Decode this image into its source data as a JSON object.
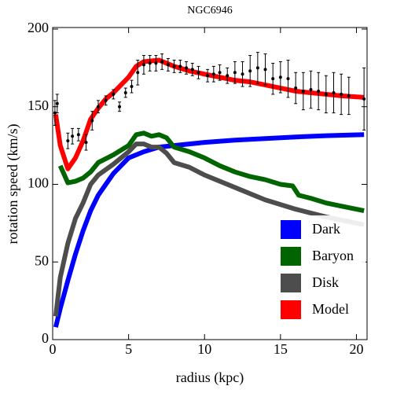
{
  "chart_data": {
    "type": "line",
    "title": "NGC6946",
    "x_label": "radius (kpc)",
    "y_label": "rotation speed (km/s)",
    "xlim": [
      0,
      20.7
    ],
    "ylim": [
      0,
      201
    ],
    "xticks": [
      0,
      5,
      10,
      15,
      20
    ],
    "yticks": [
      0,
      50,
      100,
      150,
      200
    ],
    "legend": "lower right",
    "series": [
      {
        "name": "Dark",
        "color": "#0000ff",
        "x": [
          0.2,
          0.5,
          1,
          1.5,
          2,
          2.5,
          3,
          4,
          5,
          6,
          7,
          8,
          10,
          12,
          14,
          16,
          18,
          20.5
        ],
        "values": [
          8,
          20,
          38,
          55,
          70,
          83,
          93,
          107,
          117,
          121,
          124,
          125,
          127,
          128.5,
          129.5,
          130.5,
          131.3,
          132
        ]
      },
      {
        "name": "Baryon",
        "color": "#006400",
        "x": [
          0.5,
          1,
          1.5,
          2,
          2.5,
          3,
          4,
          5,
          5.5,
          6,
          6.5,
          7,
          7.5,
          8,
          9,
          10,
          11,
          12,
          13,
          14,
          15,
          15.8,
          16.2,
          17,
          18,
          19,
          20.5
        ],
        "values": [
          112,
          101,
          102,
          104,
          108,
          114,
          119,
          125,
          132,
          133,
          131,
          132,
          130,
          124,
          121,
          117,
          112,
          108,
          105,
          103,
          100,
          99,
          93,
          91,
          88,
          86,
          83
        ]
      },
      {
        "name": "Disk",
        "color": "#4d4d4d",
        "x": [
          0.2,
          0.5,
          1,
          1.5,
          2,
          2.5,
          3,
          4,
          5,
          5.5,
          6,
          6.5,
          7,
          7.5,
          8,
          9,
          10,
          12,
          14,
          16,
          18,
          20.5
        ],
        "values": [
          15,
          40,
          62,
          78,
          88,
          100,
          106,
          113,
          121,
          126,
          126,
          124,
          124,
          120,
          114,
          111,
          106,
          98,
          90,
          84,
          79,
          74
        ]
      },
      {
        "name": "Model",
        "color": "#ff0000",
        "x": [
          0.2,
          0.5,
          1,
          1.5,
          2,
          2.5,
          3,
          3.5,
          4,
          5,
          5.5,
          6,
          7,
          7.5,
          8,
          9,
          10,
          11,
          12,
          13,
          14,
          15,
          16,
          17,
          18,
          19,
          20.5
        ],
        "values": [
          145,
          125,
          110,
          117,
          128,
          142,
          149,
          155,
          159,
          169,
          176,
          179,
          180,
          178,
          176,
          173,
          171,
          169,
          167,
          166,
          164,
          162,
          160,
          159,
          158,
          157,
          156
        ]
      }
    ],
    "points": {
      "color": "#000000",
      "x": [
        0.15,
        0.3,
        1,
        1.3,
        1.7,
        2.2,
        2.6,
        3,
        3.5,
        4,
        4.4,
        4.8,
        5.2,
        5.6,
        6,
        6.4,
        6.8,
        7.2,
        7.6,
        8,
        8.4,
        8.8,
        9.2,
        9.6,
        10.2,
        10.6,
        11,
        11.5,
        12,
        12.5,
        13,
        13.5,
        14,
        14.5,
        15,
        15.5,
        16,
        16.5,
        17,
        17.5,
        18,
        18.5,
        19,
        19.5,
        20.5
      ],
      "values": [
        146,
        152,
        128,
        131,
        132,
        127,
        141,
        150,
        154,
        158,
        150,
        159,
        163,
        172,
        177,
        178,
        178,
        179,
        177,
        176,
        176,
        175,
        174,
        172,
        170,
        171,
        172,
        170,
        172,
        171,
        173,
        175,
        174,
        168,
        169,
        168,
        162,
        160,
        161,
        160,
        158,
        159,
        158,
        157,
        155
      ],
      "errors": [
        8,
        6,
        5,
        5,
        4,
        5,
        6,
        4,
        3,
        3,
        3,
        3,
        4,
        8,
        6,
        5,
        5,
        5,
        4,
        4,
        4,
        4,
        4,
        4,
        4,
        5,
        5,
        5,
        7,
        8,
        10,
        10,
        10,
        10,
        10,
        12,
        10,
        12,
        12,
        12,
        12,
        13,
        13,
        12,
        20
      ]
    }
  }
}
